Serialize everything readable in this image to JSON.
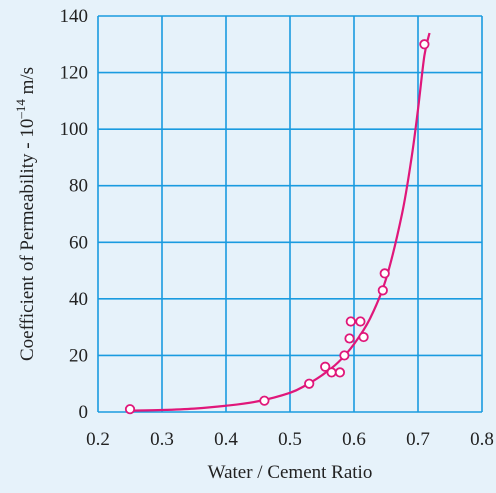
{
  "chart_data": {
    "type": "scatter",
    "title": "",
    "xlabel": "Water / Cement Ratio",
    "ylabel": {
      "prefix": "Coefficient of Permeability - 10",
      "exponent": "–14",
      "unit": " m/s"
    },
    "xlim": [
      0.2,
      0.8
    ],
    "ylim": [
      0,
      140
    ],
    "x_ticks": [
      0.2,
      0.3,
      0.4,
      0.5,
      0.6,
      0.7,
      0.8
    ],
    "x_tick_labels": [
      "0.2",
      "0.3",
      "0.4",
      "0.5",
      "0.6",
      "0.7",
      "0.8"
    ],
    "y_ticks": [
      0,
      20,
      40,
      60,
      80,
      100,
      120,
      140
    ],
    "y_tick_labels": [
      "0",
      "20",
      "40",
      "60",
      "80",
      "100",
      "120",
      "140"
    ],
    "grid": true,
    "series": [
      {
        "marker": "open-circle",
        "x": [
          0.25,
          0.46,
          0.53,
          0.555,
          0.565,
          0.578,
          0.585,
          0.593,
          0.595,
          0.61,
          0.615,
          0.645,
          0.648,
          0.71
        ],
        "y": [
          1,
          4,
          10,
          16,
          14,
          14,
          20,
          26,
          32,
          32,
          26.5,
          43,
          49,
          130
        ]
      }
    ],
    "trend_curve": {
      "x": [
        0.255,
        0.3,
        0.35,
        0.4,
        0.45,
        0.5,
        0.525,
        0.55,
        0.575,
        0.6,
        0.625,
        0.65,
        0.675,
        0.69,
        0.7,
        0.71,
        0.718
      ],
      "y": [
        0.5,
        0.7,
        1.2,
        2.2,
        3.8,
        6.8,
        9.5,
        13,
        17.5,
        24,
        33,
        47,
        70,
        90,
        107,
        126,
        134
      ]
    },
    "colors": {
      "plot_background": "#e6f2fa",
      "grid": "#1a9be0",
      "series": "#e0177a",
      "text": "#222222"
    }
  }
}
